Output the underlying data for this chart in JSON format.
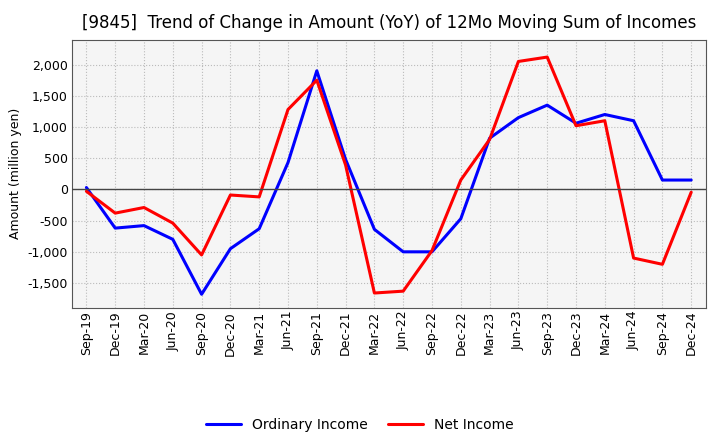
{
  "title": "[9845]  Trend of Change in Amount (YoY) of 12Mo Moving Sum of Incomes",
  "ylabel": "Amount (million yen)",
  "labels": [
    "Sep-19",
    "Dec-19",
    "Mar-20",
    "Jun-20",
    "Sep-20",
    "Dec-20",
    "Mar-21",
    "Jun-21",
    "Sep-21",
    "Dec-21",
    "Mar-22",
    "Jun-22",
    "Sep-22",
    "Dec-22",
    "Mar-23",
    "Jun-23",
    "Sep-23",
    "Dec-23",
    "Mar-24",
    "Jun-24",
    "Sep-24",
    "Dec-24"
  ],
  "ordinary_income": [
    30,
    -620,
    -580,
    -800,
    -1680,
    -950,
    -630,
    430,
    1900,
    480,
    -640,
    -1000,
    -1000,
    -470,
    820,
    1150,
    1350,
    1060,
    1200,
    1100,
    150,
    150
  ],
  "net_income": [
    -30,
    -380,
    -290,
    -540,
    -1050,
    -90,
    -120,
    1280,
    1750,
    390,
    -1660,
    -1630,
    -980,
    150,
    800,
    2050,
    2120,
    1020,
    1100,
    -1100,
    -1200,
    -45
  ],
  "ordinary_income_color": "#0000ff",
  "net_income_color": "#ff0000",
  "ylim": [
    -1900,
    2400
  ],
  "yticks": [
    -1500,
    -1000,
    -500,
    0,
    500,
    1000,
    1500,
    2000
  ],
  "plot_bg_color": "#f5f5f5",
  "fig_bg_color": "#ffffff",
  "grid_color": "#bbbbbb",
  "title_fontsize": 12,
  "axis_label_fontsize": 9,
  "tick_fontsize": 9,
  "legend_fontsize": 10
}
